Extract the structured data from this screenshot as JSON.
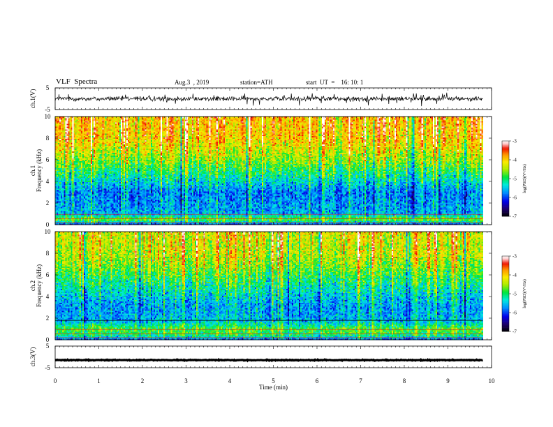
{
  "header": {
    "title": "VLF  Spectra",
    "date": "Aug.3  , 2019",
    "station": "station=ATH",
    "start_ut": "start  UT  =    16: 10: 1"
  },
  "chart_data": [
    {
      "type": "line",
      "panel": "ch1-waveform",
      "ylabel": "ch.1(V)",
      "ylim": [
        -5,
        5
      ],
      "yticks": [
        "5",
        "-5"
      ],
      "xlim": [
        0,
        10
      ],
      "line_color": "#000000",
      "baseline": 0
    },
    {
      "type": "heatmap",
      "panel": "ch1-spectrogram",
      "ylabel": "ch.1\nFrequency (kHz)",
      "ylabel_lines": [
        "ch.1",
        "Frequency (kHz)"
      ],
      "ylim": [
        0,
        10
      ],
      "yticks": [
        "0",
        "2",
        "4",
        "6",
        "8",
        "10"
      ],
      "xlim": [
        0,
        10
      ],
      "data_end_min": 9.8,
      "colorbar": {
        "label": "log(PSD)(V²/Hz)",
        "range": [
          -7,
          -3
        ],
        "ticks": [
          "-3",
          "-4",
          "-5",
          "-6",
          "-7"
        ]
      },
      "profile_kHz": [
        [
          0,
          -6.2
        ],
        [
          0.5,
          -4.6
        ],
        [
          1,
          -5.6
        ],
        [
          2,
          -5.7
        ],
        [
          3,
          -5.8
        ],
        [
          4,
          -5.4
        ],
        [
          5,
          -5.0
        ],
        [
          6,
          -4.6
        ],
        [
          7,
          -4.3
        ],
        [
          8,
          -4.0
        ],
        [
          10,
          -3.9
        ]
      ]
    },
    {
      "type": "heatmap",
      "panel": "ch2-spectrogram",
      "ylabel": "ch.2\nFrequency (kHz)",
      "ylabel_lines": [
        "ch.2",
        "Frequency (kHz)"
      ],
      "ylim": [
        0,
        10
      ],
      "yticks": [
        "0",
        "2",
        "4",
        "6",
        "8",
        "10"
      ],
      "xlim": [
        0,
        10
      ],
      "data_end_min": 9.8,
      "colorbar": {
        "label": "log(PSD)(V²/Hz)",
        "range": [
          -7,
          -3
        ],
        "ticks": [
          "-3",
          "-4",
          "-5",
          "-6",
          "-7"
        ]
      },
      "profile_kHz": [
        [
          0,
          -6.0
        ],
        [
          0.5,
          -5.0
        ],
        [
          1,
          -4.8
        ],
        [
          1.8,
          -5.6
        ],
        [
          2,
          -5.6
        ],
        [
          3,
          -5.7
        ],
        [
          4,
          -5.5
        ],
        [
          5,
          -5.2
        ],
        [
          6,
          -4.9
        ],
        [
          7,
          -4.6
        ],
        [
          8,
          -4.4
        ],
        [
          10,
          -4.3
        ]
      ]
    },
    {
      "type": "line",
      "panel": "ch3-waveform",
      "ylabel": "ch.3(V)",
      "ylim": [
        -5,
        5
      ],
      "yticks": [
        "5",
        "-5"
      ],
      "xlim": [
        0,
        10
      ],
      "line_color": "#000000",
      "baseline": -1.5
    }
  ],
  "xaxis": {
    "label": "Time  (min)",
    "ticks": [
      "0",
      "1",
      "2",
      "3",
      "4",
      "5",
      "6",
      "7",
      "8",
      "9",
      "10"
    ]
  }
}
